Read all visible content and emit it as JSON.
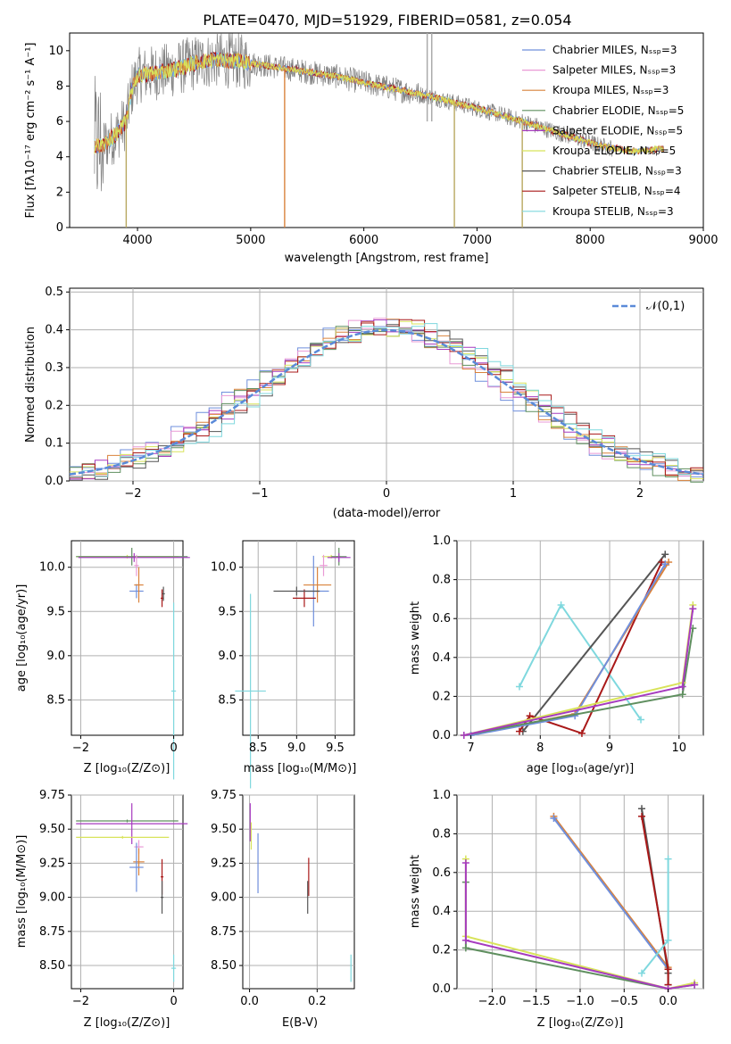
{
  "colors": {
    "chabrier_miles": "#6f8fdc",
    "salpeter_miles": "#e99ad6",
    "kroupa_miles": "#d9823c",
    "chabrier_elodie": "#5f8f5f",
    "salpeter_elodie": "#a63bbf",
    "kroupa_elodie": "#d8e35a",
    "chabrier_stelib": "#555555",
    "salpeter_stelib": "#a91818",
    "kroupa_stelib": "#7fd8de",
    "data_spectrum": "#808080",
    "normal_curve": "#5a8ad8",
    "grid": "#b0b0b0"
  },
  "legend": [
    {
      "label": "Chabrier MILES, Nₛₛₚ=3",
      "key": "chabrier_miles"
    },
    {
      "label": "Salpeter MILES, Nₛₛₚ=3",
      "key": "salpeter_miles"
    },
    {
      "label": "Kroupa MILES, Nₛₛₚ=3",
      "key": "kroupa_miles"
    },
    {
      "label": "Chabrier ELODIE, Nₛₛₚ=5",
      "key": "chabrier_elodie"
    },
    {
      "label": "Salpeter ELODIE, Nₛₛₚ=5",
      "key": "salpeter_elodie"
    },
    {
      "label": "Kroupa ELODIE, Nₛₛₚ=5",
      "key": "kroupa_elodie"
    },
    {
      "label": "Chabrier STELIB, Nₛₛₚ=3",
      "key": "chabrier_stelib"
    },
    {
      "label": "Salpeter STELIB, Nₛₛₚ=4",
      "key": "salpeter_stelib"
    },
    {
      "label": "Kroupa STELIB, Nₛₛₚ=3",
      "key": "kroupa_stelib"
    }
  ],
  "chart_data": [
    {
      "id": "spectrum",
      "type": "line",
      "title": "PLATE=0470, MJD=51929, FIBERID=0581, z=0.054",
      "xlabel": "wavelength [Angstrom, rest frame]",
      "ylabel": "Flux [fλ10⁻¹⁷ erg cm⁻² s⁻¹ A⁻¹]",
      "xlim": [
        3400,
        9000
      ],
      "ylim": [
        0,
        11
      ],
      "xticks": [
        4000,
        5000,
        6000,
        7000,
        8000,
        9000
      ],
      "yticks": [
        0,
        2,
        4,
        6,
        8,
        10
      ],
      "continuum_x": [
        3620,
        3700,
        3800,
        3900,
        3950,
        4000,
        4100,
        4200,
        4300,
        4500,
        4700,
        4900,
        5100,
        5300,
        5500,
        5800,
        6000,
        6300,
        6600,
        6900,
        7200,
        7500,
        7800,
        8100,
        8400,
        8700
      ],
      "continuum_y": [
        4.6,
        4.7,
        5.2,
        6.0,
        7.8,
        8.6,
        8.7,
        8.8,
        8.9,
        9.3,
        9.5,
        9.4,
        9.2,
        9.0,
        8.8,
        8.5,
        8.2,
        7.8,
        7.4,
        6.9,
        6.4,
        5.8,
        5.2,
        4.6,
        4.3,
        4.5
      ],
      "spike_x": [
        3900,
        5300,
        6800,
        7400
      ],
      "grid": false,
      "legend_position": "top-right"
    },
    {
      "id": "residuals",
      "type": "histogram",
      "xlabel": "(data-model)/error",
      "ylabel": "Normed distribution",
      "xlim": [
        -2.5,
        2.5
      ],
      "ylim": [
        0,
        0.51
      ],
      "xticks": [
        -2,
        -1,
        0,
        1,
        2
      ],
      "yticks": [
        0.0,
        0.1,
        0.2,
        0.3,
        0.4,
        0.5
      ],
      "bin_width": 0.1,
      "normal_label": "𝒩(0,1)",
      "grid": true,
      "legend_position": "top-right"
    },
    {
      "id": "age_vs_Z",
      "type": "errorbar",
      "xlabel": "Z [log₁₀(Z/Z⊙)]",
      "ylabel": "age  [log₁₀(age/yr)]",
      "xlim": [
        -2.2,
        0.2
      ],
      "ylim": [
        8.1,
        10.3
      ],
      "xticks": [
        -2,
        0
      ],
      "yticks": [
        8.5,
        9.0,
        9.5,
        10.0
      ],
      "points": [
        {
          "key": "kroupa_elodie",
          "x": -1.0,
          "y": 10.12,
          "xerr": 1.1,
          "yerr": 0.02
        },
        {
          "key": "chabrier_elodie",
          "x": -0.9,
          "y": 10.12,
          "xerr": 1.2,
          "yerr": 0.1
        },
        {
          "key": "salpeter_elodie",
          "x": -0.85,
          "y": 10.11,
          "xerr": 1.2,
          "yerr": 0.05
        },
        {
          "key": "salpeter_miles",
          "x": -0.8,
          "y": 10.02,
          "xerr": 0.05,
          "yerr": 0.12
        },
        {
          "key": "chabrier_miles",
          "x": -0.8,
          "y": 9.73,
          "xerr": 0.15,
          "yerr": 0.08
        },
        {
          "key": "kroupa_miles",
          "x": -0.75,
          "y": 9.8,
          "xerr": 0.1,
          "yerr": 0.2
        },
        {
          "key": "salpeter_stelib",
          "x": -0.25,
          "y": 9.65,
          "xerr": 0.03,
          "yerr": 0.1
        },
        {
          "key": "chabrier_stelib",
          "x": -0.22,
          "y": 9.7,
          "xerr": 0.03,
          "yerr": 0.08
        },
        {
          "key": "kroupa_stelib",
          "x": 0.0,
          "y": 8.6,
          "xerr": 0.05,
          "yerr": 1.0
        }
      ]
    },
    {
      "id": "age_vs_mass",
      "type": "errorbar",
      "xlabel": "mass [log₁₀(M/M⊙)]",
      "xlim": [
        8.3,
        9.75
      ],
      "ylim": [
        8.1,
        10.3
      ],
      "xticks": [
        8.5,
        9.0,
        9.5
      ],
      "yticks": [
        8.5,
        9.0,
        9.5,
        10.0
      ],
      "points": [
        {
          "key": "kroupa_elodie",
          "x": 9.45,
          "y": 10.12,
          "xerr": 0.12,
          "yerr": 0.02
        },
        {
          "key": "chabrier_elodie",
          "x": 9.55,
          "y": 10.12,
          "xerr": 0.1,
          "yerr": 0.1
        },
        {
          "key": "salpeter_elodie",
          "x": 9.55,
          "y": 10.11,
          "xerr": 0.15,
          "yerr": 0.05
        },
        {
          "key": "salpeter_miles",
          "x": 9.35,
          "y": 10.02,
          "xerr": 0.05,
          "yerr": 0.12
        },
        {
          "key": "chabrier_miles",
          "x": 9.22,
          "y": 9.73,
          "xerr": 0.2,
          "yerr": 0.4
        },
        {
          "key": "kroupa_miles",
          "x": 9.27,
          "y": 9.8,
          "xerr": 0.18,
          "yerr": 0.2
        },
        {
          "key": "salpeter_stelib",
          "x": 9.1,
          "y": 9.65,
          "xerr": 0.15,
          "yerr": 0.1
        },
        {
          "key": "chabrier_stelib",
          "x": 9.0,
          "y": 9.73,
          "xerr": 0.3,
          "yerr": 0.05
        },
        {
          "key": "kroupa_stelib",
          "x": 8.4,
          "y": 8.6,
          "xerr": 0.2,
          "yerr": 1.1
        }
      ]
    },
    {
      "id": "massweight_vs_age",
      "type": "line",
      "xlabel": "age  [log₁₀(age/yr)]",
      "ylabel": "mass weight",
      "xlim": [
        6.8,
        10.35
      ],
      "ylim": [
        0,
        1.0
      ],
      "xticks": [
        7,
        8,
        9,
        10
      ],
      "yticks": [
        0.0,
        0.2,
        0.4,
        0.6,
        0.8,
        1.0
      ],
      "grid": true,
      "series": [
        {
          "key": "kroupa_stelib",
          "x": [
            7.7,
            8.3,
            9.45
          ],
          "y": [
            0.25,
            0.67,
            0.08
          ]
        },
        {
          "key": "chabrier_stelib",
          "x": [
            7.75,
            9.8
          ],
          "y": [
            0.02,
            0.93
          ]
        },
        {
          "key": "salpeter_stelib",
          "x": [
            7.7,
            7.85,
            8.6,
            9.75
          ],
          "y": [
            0.02,
            0.1,
            0.01,
            0.89
          ]
        },
        {
          "key": "kroupa_miles",
          "x": [
            7.0,
            8.5,
            9.85
          ],
          "y": [
            0.0,
            0.11,
            0.89
          ]
        },
        {
          "key": "chabrier_miles",
          "x": [
            7.0,
            8.5,
            9.8
          ],
          "y": [
            0.0,
            0.1,
            0.88
          ]
        },
        {
          "key": "chabrier_elodie",
          "x": [
            6.9,
            10.05,
            10.2
          ],
          "y": [
            0.0,
            0.21,
            0.55
          ]
        },
        {
          "key": "kroupa_elodie",
          "x": [
            6.9,
            10.05,
            10.2
          ],
          "y": [
            0.0,
            0.27,
            0.67
          ]
        },
        {
          "key": "salpeter_elodie",
          "x": [
            6.9,
            10.05,
            10.2
          ],
          "y": [
            0.0,
            0.25,
            0.65
          ]
        }
      ]
    },
    {
      "id": "mass_vs_Z",
      "type": "errorbar",
      "xlabel": "Z [log₁₀(Z/Z⊙)]",
      "ylabel": "mass [log₁₀(M/M⊙)]",
      "xlim": [
        -2.2,
        0.2
      ],
      "ylim": [
        8.33,
        9.75
      ],
      "xticks": [
        -2,
        0
      ],
      "yticks": [
        8.5,
        8.75,
        9.0,
        9.25,
        9.5,
        9.75
      ],
      "points": [
        {
          "key": "chabrier_elodie",
          "x": -1.0,
          "y": 9.56,
          "xerr": 1.1,
          "yerr": 0.01
        },
        {
          "key": "salpeter_elodie",
          "x": -0.9,
          "y": 9.54,
          "xerr": 1.2,
          "yerr": 0.15
        },
        {
          "key": "kroupa_elodie",
          "x": -1.1,
          "y": 9.44,
          "xerr": 1.0,
          "yerr": 0.01
        },
        {
          "key": "salpeter_miles",
          "x": -0.75,
          "y": 9.37,
          "xerr": 0.1,
          "yerr": 0.05
        },
        {
          "key": "kroupa_miles",
          "x": -0.75,
          "y": 9.26,
          "xerr": 0.12,
          "yerr": 0.1
        },
        {
          "key": "chabrier_miles",
          "x": -0.8,
          "y": 9.22,
          "xerr": 0.15,
          "yerr": 0.18
        },
        {
          "key": "salpeter_stelib",
          "x": -0.25,
          "y": 9.15,
          "xerr": 0.03,
          "yerr": 0.13
        },
        {
          "key": "chabrier_stelib",
          "x": -0.25,
          "y": 9.0,
          "xerr": 0.03,
          "yerr": 0.12
        },
        {
          "key": "kroupa_stelib",
          "x": 0.0,
          "y": 8.48,
          "xerr": 0.05,
          "yerr": 0.1
        }
      ]
    },
    {
      "id": "mass_vs_ebv",
      "type": "errorbar",
      "xlabel": "E(B-V)",
      "xlim": [
        -0.02,
        0.31
      ],
      "ylim": [
        8.33,
        9.75
      ],
      "xticks": [
        0.0,
        0.2
      ],
      "yticks": [
        8.5,
        8.75,
        9.0,
        9.25,
        9.5,
        9.75
      ],
      "points": [
        {
          "key": "salpeter_elodie",
          "x": 0.002,
          "y": 9.55,
          "xerr": 0.0,
          "yerr": 0.14
        },
        {
          "key": "kroupa_elodie",
          "x": 0.005,
          "y": 9.45,
          "xerr": 0.0,
          "yerr": 0.1
        },
        {
          "key": "chabrier_miles",
          "x": 0.025,
          "y": 9.25,
          "xerr": 0.0,
          "yerr": 0.22
        },
        {
          "key": "salpeter_stelib",
          "x": 0.175,
          "y": 9.15,
          "xerr": 0.0,
          "yerr": 0.14
        },
        {
          "key": "chabrier_stelib",
          "x": 0.172,
          "y": 9.0,
          "xerr": 0.0,
          "yerr": 0.12
        },
        {
          "key": "kroupa_stelib",
          "x": 0.3,
          "y": 8.48,
          "xerr": 0.0,
          "yerr": 0.1
        }
      ]
    },
    {
      "id": "massweight_vs_Z",
      "type": "line",
      "xlabel": "Z [log₁₀(Z/Z⊙)]",
      "ylabel": "mass weight",
      "xlim": [
        -2.4,
        0.4
      ],
      "ylim": [
        0,
        1.0
      ],
      "xticks": [
        -2.0,
        -1.5,
        -1.0,
        -0.5,
        0.0
      ],
      "yticks": [
        0.0,
        0.2,
        0.4,
        0.6,
        0.8,
        1.0
      ],
      "grid": true,
      "series": [
        {
          "key": "kroupa_miles",
          "x": [
            -1.3,
            0.0
          ],
          "y": [
            0.89,
            0.11
          ]
        },
        {
          "key": "chabrier_miles",
          "x": [
            -1.3,
            0.0
          ],
          "y": [
            0.88,
            0.1
          ]
        },
        {
          "key": "chabrier_stelib",
          "x": [
            -0.3,
            0.0,
            0.0
          ],
          "y": [
            0.93,
            0.08,
            0.02
          ]
        },
        {
          "key": "salpeter_stelib",
          "x": [
            -0.3,
            0.0,
            0.0
          ],
          "y": [
            0.89,
            0.1,
            0.02
          ]
        },
        {
          "key": "kroupa_stelib",
          "x": [
            -0.3,
            0.0,
            0.0
          ],
          "y": [
            0.08,
            0.25,
            0.67
          ]
        },
        {
          "key": "chabrier_elodie",
          "x": [
            -2.3,
            -2.3,
            0.0,
            0.3
          ],
          "y": [
            0.55,
            0.21,
            0.0,
            0.02
          ]
        },
        {
          "key": "kroupa_elodie",
          "x": [
            -2.3,
            -2.3,
            0.0,
            0.3
          ],
          "y": [
            0.67,
            0.27,
            0.0,
            0.03
          ]
        },
        {
          "key": "salpeter_elodie",
          "x": [
            -2.3,
            -2.3,
            0.0,
            0.3
          ],
          "y": [
            0.65,
            0.25,
            0.0,
            0.02
          ]
        }
      ]
    }
  ]
}
